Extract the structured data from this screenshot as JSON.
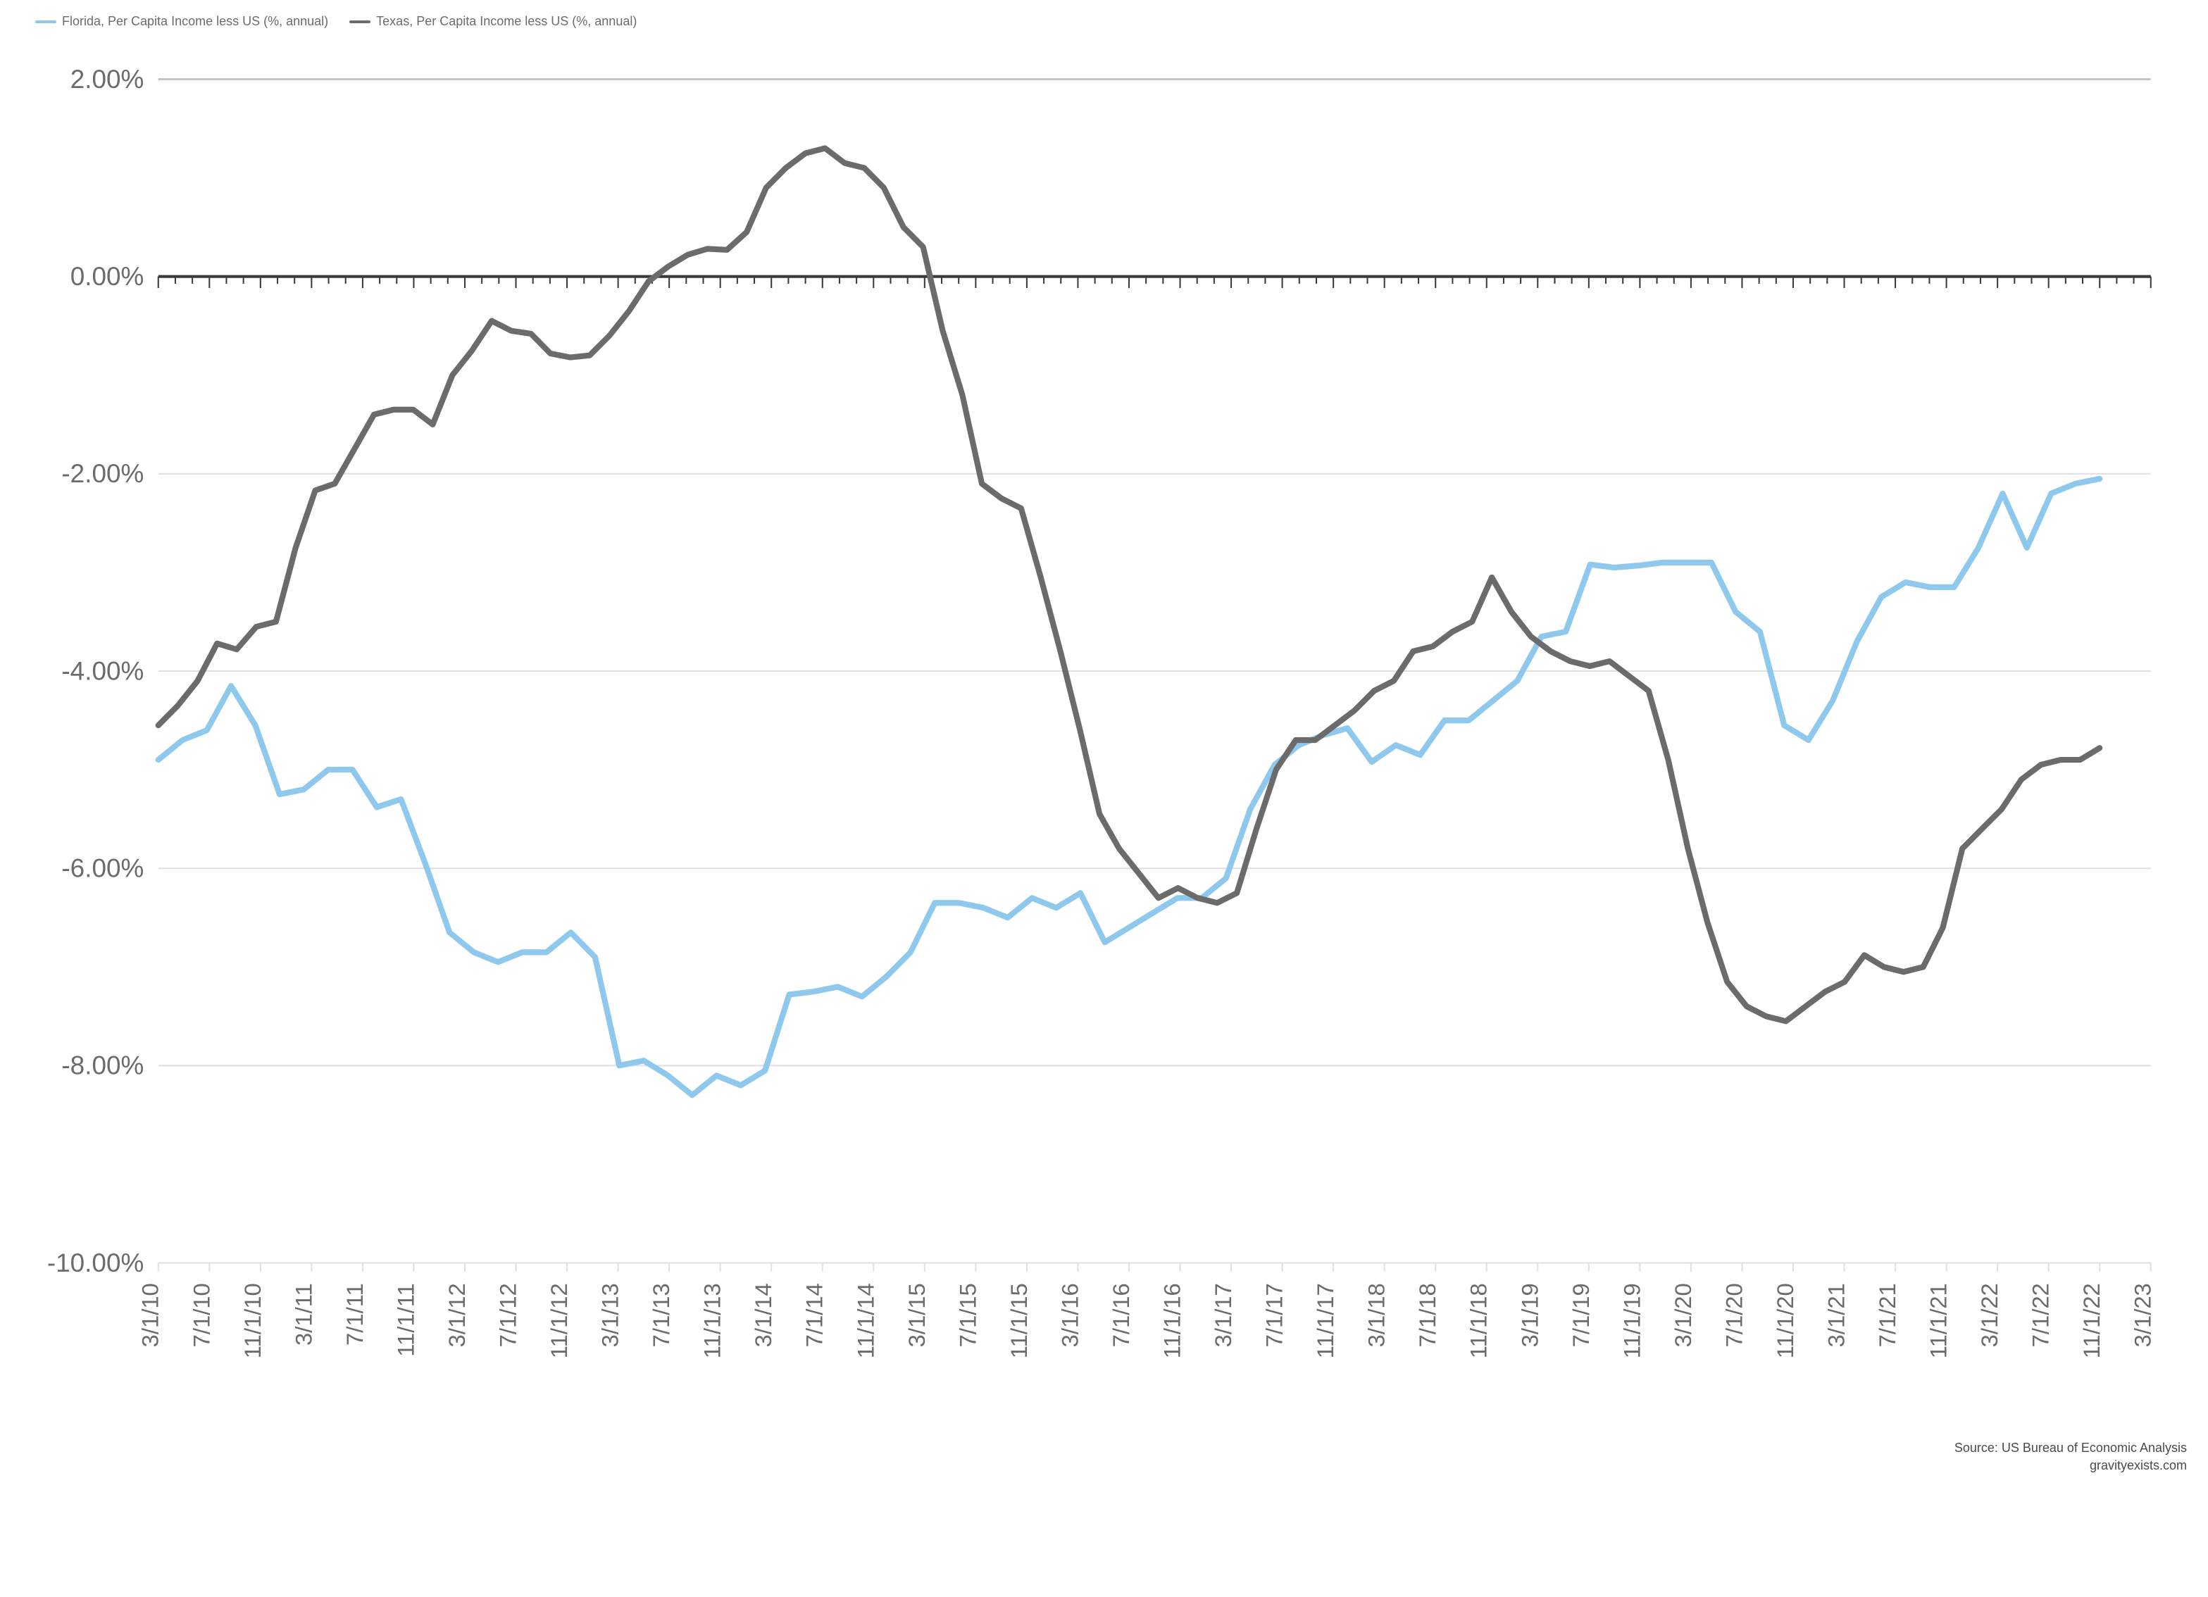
{
  "chart": {
    "type": "line",
    "background_color": "#ffffff",
    "grid_color": "#e0e0e0",
    "axis_color": "#3a3a3a",
    "line_width": 4,
    "font_family": "Segoe UI, Helvetica Neue, Arial, sans-serif",
    "label_color": "#6b6b6b",
    "y_axis": {
      "min": -10,
      "max": 2,
      "step": 2,
      "format": "percent_2dp",
      "ticks": [
        -10,
        -8,
        -6,
        -4,
        -2,
        0,
        2
      ]
    },
    "x_axis": {
      "labels": [
        "3/1/10",
        "7/1/10",
        "11/1/10",
        "3/1/11",
        "7/1/11",
        "11/1/11",
        "3/1/12",
        "7/1/12",
        "11/1/12",
        "3/1/13",
        "7/1/13",
        "11/1/13",
        "3/1/14",
        "7/1/14",
        "11/1/14",
        "3/1/15",
        "7/1/15",
        "11/1/15",
        "3/1/16",
        "7/1/16",
        "11/1/16",
        "3/1/17",
        "7/1/17",
        "11/1/17",
        "3/1/18",
        "7/1/18",
        "11/1/18",
        "3/1/19",
        "7/1/19",
        "11/1/19",
        "3/1/20",
        "7/1/20",
        "11/1/20",
        "3/1/21",
        "7/1/21",
        "11/1/21",
        "3/1/22",
        "7/1/22",
        "11/1/22",
        "3/1/23"
      ],
      "rotation": -90
    },
    "series": [
      {
        "name": "Florida, Per Capita Income less US (%, annual)",
        "color": "#8ec9ed",
        "values": [
          -4.9,
          -4.7,
          -4.6,
          -4.15,
          -4.55,
          -5.25,
          -5.2,
          -5.0,
          -5.0,
          -5.38,
          -5.3,
          -5.95,
          -6.65,
          -6.85,
          -6.95,
          -6.85,
          -6.85,
          -6.65,
          -6.9,
          -8.0,
          -7.95,
          -8.1,
          -8.3,
          -8.1,
          -8.2,
          -8.05,
          -7.28,
          -7.25,
          -7.2,
          -7.3,
          -7.1,
          -6.85,
          -6.35,
          -6.35,
          -6.4,
          -6.5,
          -6.3,
          -6.4,
          -6.25,
          -6.75,
          -6.6,
          -6.45,
          -6.3,
          -6.3,
          -6.1,
          -5.4,
          -4.95,
          -4.75,
          -4.65,
          -4.58,
          -4.92,
          -4.75,
          -4.85,
          -4.5,
          -4.5,
          -4.3,
          -4.1,
          -3.65,
          -3.6,
          -2.92,
          -2.95,
          -2.93,
          -2.9,
          -2.9,
          -2.9,
          -3.4,
          -3.6,
          -4.55,
          -4.7,
          -4.3,
          -3.7,
          -3.25,
          -3.1,
          -3.15,
          -3.15,
          -2.75,
          -2.2,
          -2.75,
          -2.2,
          -2.1,
          -2.05
        ]
      },
      {
        "name": "Texas, Per Capita Income less US (%, annual)",
        "color": "#6b6b6b",
        "values": [
          -4.55,
          -4.35,
          -4.1,
          -3.72,
          -3.78,
          -3.55,
          -3.5,
          -2.75,
          -2.17,
          -2.1,
          -1.75,
          -1.4,
          -1.35,
          -1.35,
          -1.5,
          -1.0,
          -0.75,
          -0.45,
          -0.55,
          -0.58,
          -0.78,
          -0.82,
          -0.8,
          -0.6,
          -0.35,
          -0.05,
          0.1,
          0.22,
          0.28,
          0.27,
          0.45,
          0.9,
          1.1,
          1.25,
          1.3,
          1.15,
          1.1,
          0.9,
          0.5,
          0.3,
          -0.55,
          -1.2,
          -2.1,
          -2.25,
          -2.35,
          -3.05,
          -3.8,
          -4.6,
          -5.45,
          -5.8,
          -6.05,
          -6.3,
          -6.2,
          -6.3,
          -6.35,
          -6.25,
          -5.6,
          -5.0,
          -4.7,
          -4.7,
          -4.55,
          -4.4,
          -4.2,
          -4.1,
          -3.8,
          -3.75,
          -3.6,
          -3.5,
          -3.05,
          -3.4,
          -3.65,
          -3.8,
          -3.9,
          -3.95,
          -3.9,
          -4.05,
          -4.2,
          -4.9,
          -5.8,
          -6.55,
          -7.15,
          -7.4,
          -7.5,
          -7.55,
          -7.4,
          -7.25,
          -7.15,
          -6.88,
          -7.0,
          -7.05,
          -7.0,
          -6.6,
          -5.8,
          -5.6,
          -5.4,
          -5.1,
          -4.95,
          -4.9,
          -4.9,
          -4.78
        ]
      }
    ],
    "source_line1": "Source: US Bureau of Economic Analysis",
    "source_line2": "gravityexists.com"
  }
}
